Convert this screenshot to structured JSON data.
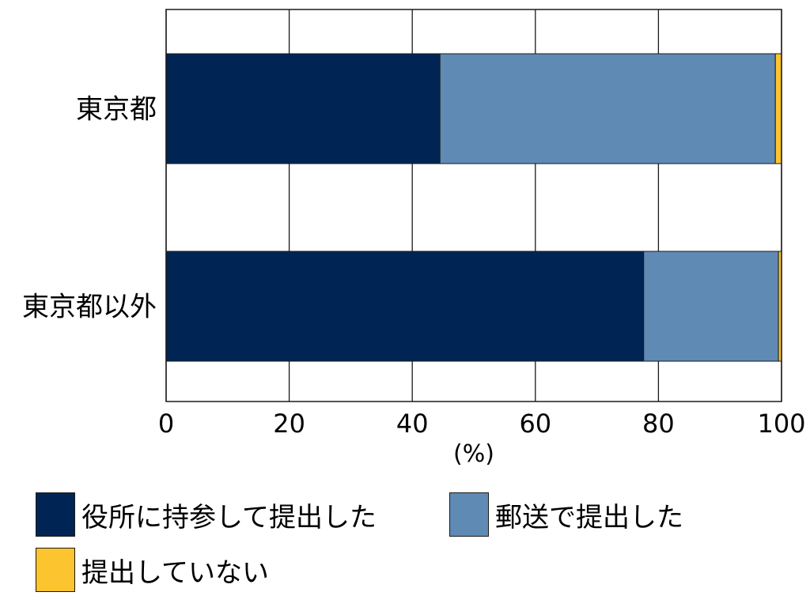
{
  "chart_data": {
    "type": "bar",
    "orientation": "horizontal",
    "stacked": true,
    "categories": [
      "東京都",
      "東京都以外"
    ],
    "series": [
      {
        "name": "役所に持参して提出した",
        "color": "#002554",
        "values": [
          44.5,
          77.6
        ]
      },
      {
        "name": "郵送で提出した",
        "color": "#5f8ab3",
        "values": [
          54.5,
          21.9
        ]
      },
      {
        "name": "提出していない",
        "color": "#fcc42e",
        "values": [
          1.0,
          0.5
        ]
      }
    ],
    "xlim": [
      0,
      100
    ],
    "xticks": [
      "0",
      "20",
      "40",
      "60",
      "80",
      "100"
    ],
    "xlabel": "(%)",
    "grid": "vertical",
    "legend_position": "bottom"
  }
}
